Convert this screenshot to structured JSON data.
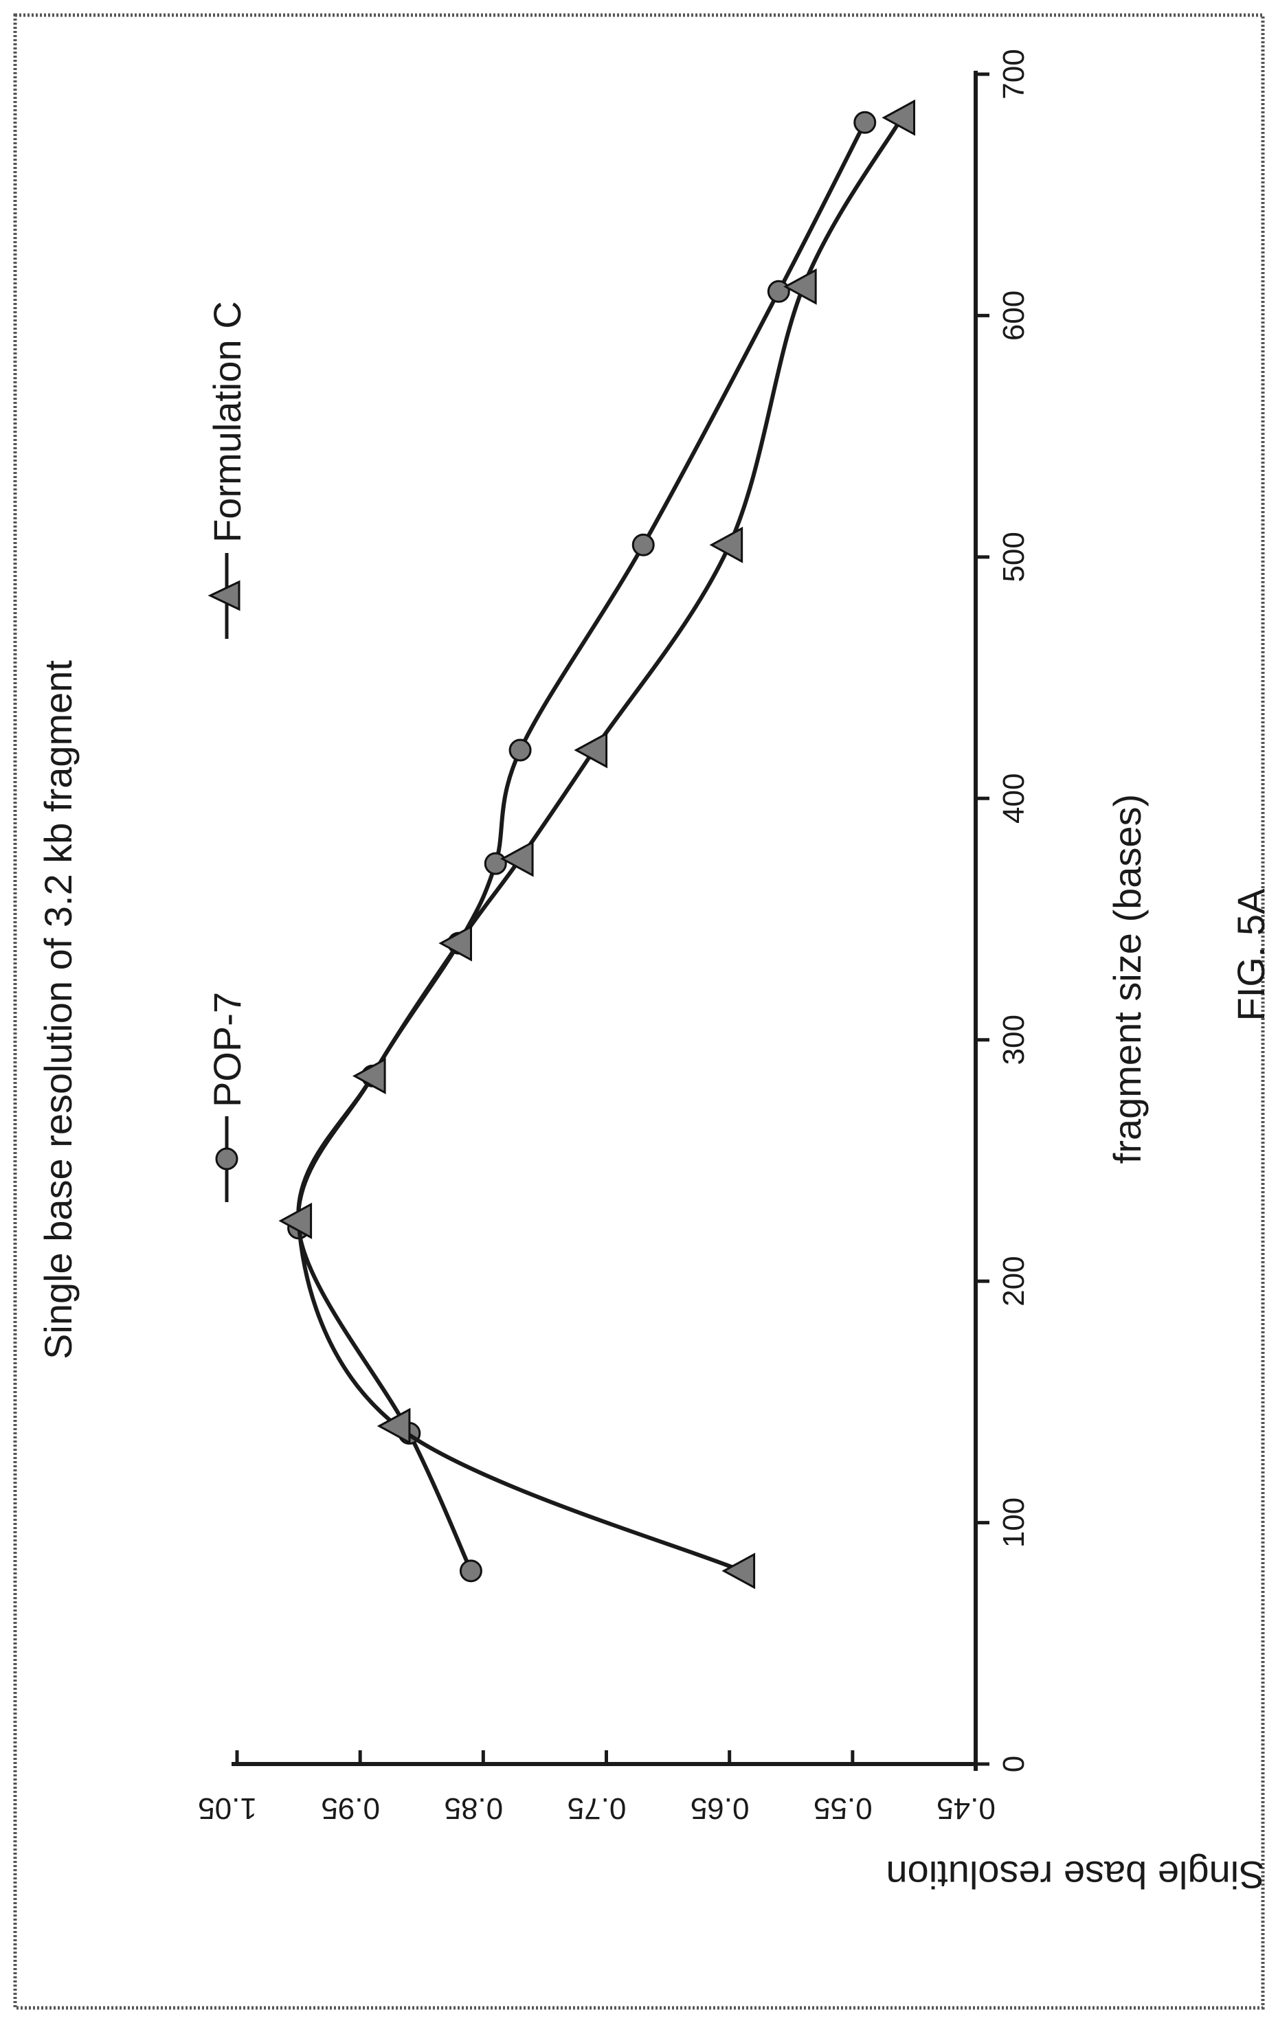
{
  "colors": {
    "ink": "#1a1a1a",
    "marker_fill": "#7a7a7a",
    "marker_stroke": "#111111",
    "border": "#555555"
  },
  "caption": "FIG. 5A",
  "chart_data": {
    "type": "line",
    "title": "Single base resolution of 3.2 kb fragment",
    "xlabel": "fragment size (bases)",
    "ylabel": "Single base resolution",
    "xlim": [
      0,
      700
    ],
    "ylim": [
      0.45,
      1.05
    ],
    "x_ticks": [
      "0",
      "100",
      "200",
      "300",
      "400",
      "500",
      "600",
      "700"
    ],
    "y_ticks": [
      "0.45",
      "0.55",
      "0.65",
      "0.75",
      "0.85",
      "0.95",
      "1.05"
    ],
    "legend_position": "top",
    "series": [
      {
        "name": "POP-7",
        "marker": "circle",
        "x": [
          80,
          137,
          222,
          285,
          340,
          373,
          420,
          505,
          610,
          680
        ],
        "y": [
          0.86,
          0.91,
          1.0,
          0.94,
          0.87,
          0.84,
          0.82,
          0.72,
          0.61,
          0.54
        ]
      },
      {
        "name": "Formulation C",
        "marker": "triangle",
        "x": [
          80,
          140,
          225,
          285,
          340,
          375,
          420,
          505,
          612,
          682
        ],
        "y": [
          0.64,
          0.92,
          1.0,
          0.94,
          0.87,
          0.82,
          0.76,
          0.65,
          0.59,
          0.51
        ]
      }
    ]
  }
}
